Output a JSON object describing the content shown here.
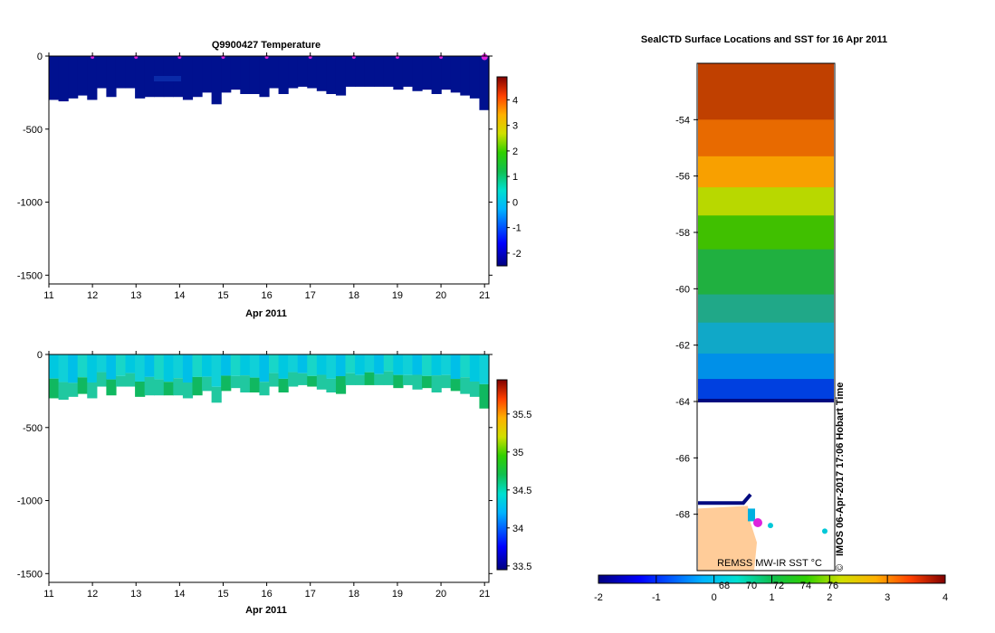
{
  "chart_data": [
    {
      "type": "heatmap",
      "title": "Q9900427  Temperature",
      "xlabel": "Apr 2011",
      "ylabel": "",
      "x_ticks": [
        "11",
        "12",
        "13",
        "14",
        "15",
        "16",
        "17",
        "18",
        "19",
        "20",
        "21"
      ],
      "y_ticks": [
        "0",
        "-500",
        "-1000",
        "-1500"
      ],
      "xlim": [
        11,
        21.1
      ],
      "ylim": [
        -1560,
        0
      ],
      "colorbar_ticks": [
        "4",
        "3",
        "2",
        "1",
        "0",
        "-1",
        "-2"
      ],
      "colorbar_range": [
        -2.5,
        4.9
      ],
      "profile_depths": [
        -300,
        -310,
        -290,
        -270,
        -300,
        -220,
        -280,
        -220,
        -220,
        -290,
        -280,
        -280,
        -280,
        -280,
        -300,
        -280,
        -250,
        -330,
        -250,
        -230,
        -260,
        -260,
        -280,
        -220,
        -260,
        -220,
        -210,
        -220,
        -240,
        -260,
        -270,
        -210,
        -210,
        -210,
        -210,
        -210,
        -230,
        -210,
        -240,
        -230,
        -260,
        -230,
        -250,
        -270,
        -290,
        -370
      ],
      "profile_marker_days": [
        12,
        13,
        14,
        15,
        16,
        17,
        18,
        19,
        20,
        21
      ]
    },
    {
      "type": "heatmap",
      "title": "",
      "xlabel": "Apr 2011",
      "ylabel": "",
      "x_ticks": [
        "11",
        "12",
        "13",
        "14",
        "15",
        "16",
        "17",
        "18",
        "19",
        "20",
        "21"
      ],
      "y_ticks": [
        "0",
        "-500",
        "-1000",
        "-1500"
      ],
      "xlim": [
        11,
        21.1
      ],
      "ylim": [
        -1560,
        0
      ],
      "colorbar_ticks": [
        "35.5",
        "35",
        "34.5",
        "34",
        "33.5"
      ],
      "colorbar_range": [
        33.45,
        35.95
      ],
      "profile_depths": [
        -300,
        -310,
        -290,
        -270,
        -300,
        -220,
        -280,
        -220,
        -220,
        -290,
        -280,
        -280,
        -280,
        -280,
        -300,
        -280,
        -250,
        -330,
        -250,
        -230,
        -260,
        -260,
        -280,
        -220,
        -260,
        -220,
        -210,
        -220,
        -240,
        -260,
        -270,
        -210,
        -210,
        -210,
        -210,
        -210,
        -230,
        -210,
        -240,
        -230,
        -260,
        -230,
        -250,
        -270,
        -290,
        -370
      ]
    },
    {
      "type": "heatmap",
      "title": "SealCTD Surface Locations and SST for 16 Apr 2011",
      "xlabel": "",
      "ylabel": "",
      "y_ticks": [
        "-54",
        "-56",
        "-58",
        "-60",
        "-62",
        "-64",
        "-66",
        "-68"
      ],
      "x_ticks": [
        "68",
        "70",
        "72",
        "74",
        "76"
      ],
      "lat_range": [
        -70,
        -52
      ],
      "colorbar_ticks": [
        "-2",
        "-1",
        "0",
        "1",
        "2",
        "3",
        "4"
      ],
      "colorbar_range": [
        -2,
        4
      ],
      "ice_edge_lat": -64,
      "source_label": "REMSS MW-IR SST °C",
      "side_label": "IMOS 06-Apr-2017 17:06 Hobart Time",
      "copyright": "©"
    }
  ],
  "colors": {
    "deep_blue": "#00118f",
    "land": "#ffcc99",
    "marker": "#dd22dd"
  }
}
